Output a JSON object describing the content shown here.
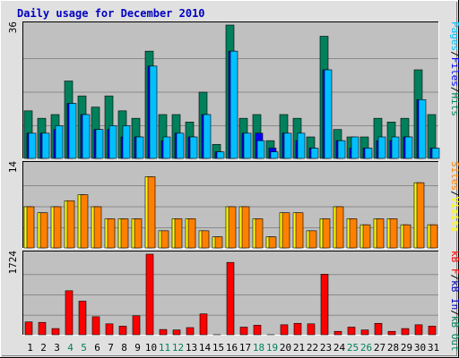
{
  "title": "Daily usage for December 2010",
  "colors": {
    "page_bg": "#E0E0E0",
    "plot_bg": "#C0C0C0",
    "title": "#0000C0",
    "grid": "#8A8A8A",
    "hits": "#00805C",
    "files": "#0000FF",
    "pages": "#00C0FF",
    "visits": "#FFFF00",
    "sites": "#FF8000",
    "kbin": "#0000C0",
    "kbout": "#00805C",
    "kbf": "#FF0000",
    "weekday_label": "#000000",
    "weekend_label": "#00805C"
  },
  "right_labels": {
    "top": [
      {
        "text": "Pages",
        "color": "#00C0FF"
      },
      {
        "text": "/",
        "color": "#000000"
      },
      {
        "text": "Files",
        "color": "#0000FF"
      },
      {
        "text": "/",
        "color": "#000000"
      },
      {
        "text": "Hits",
        "color": "#00805C"
      }
    ],
    "middle": [
      {
        "text": "Sites",
        "color": "#FF8000"
      },
      {
        "text": "/",
        "color": "#000000"
      },
      {
        "text": "Visits",
        "color": "#FFFF00"
      }
    ],
    "bottom": [
      {
        "text": "kB F",
        "color": "#FF0000"
      },
      {
        "text": "/",
        "color": "#000000"
      },
      {
        "text": "kB In",
        "color": "#0000C0"
      },
      {
        "text": "/",
        "color": "#000000"
      },
      {
        "text": "kB Out",
        "color": "#00805C"
      }
    ]
  },
  "chart_data": [
    {
      "type": "bar",
      "panel": "hits-files-pages",
      "ymax_label": "36",
      "ylim": [
        0,
        36
      ],
      "categories": [
        "1",
        "2",
        "3",
        "4",
        "5",
        "6",
        "7",
        "8",
        "9",
        "10",
        "11",
        "12",
        "13",
        "14",
        "15",
        "16",
        "17",
        "18",
        "19",
        "20",
        "21",
        "22",
        "23",
        "24",
        "25",
        "26",
        "27",
        "28",
        "29",
        "30",
        "31"
      ],
      "series": [
        {
          "name": "Hits",
          "color": "#00805C",
          "values": [
            13,
            11,
            12,
            21,
            17,
            14,
            17,
            13,
            11,
            29,
            12,
            12,
            10,
            18,
            4,
            36,
            11,
            12,
            5,
            12,
            11,
            6,
            33,
            8,
            6,
            6,
            11,
            10,
            11,
            24,
            12
          ]
        },
        {
          "name": "Files",
          "color": "#0000FF",
          "values": [
            7,
            7,
            8,
            15,
            12,
            8,
            8,
            6,
            6,
            25,
            5,
            7,
            6,
            12,
            2,
            29,
            7,
            7,
            3,
            7,
            5,
            3,
            24,
            5,
            3,
            3,
            5,
            5,
            6,
            16,
            3
          ]
        },
        {
          "name": "Pages",
          "color": "#00C0FF",
          "values": [
            7,
            7,
            9,
            15,
            12,
            8,
            9,
            9,
            6,
            25,
            6,
            7,
            6,
            12,
            2,
            29,
            7,
            5,
            2,
            7,
            7,
            3,
            24,
            5,
            6,
            3,
            6,
            6,
            6,
            16,
            3
          ]
        }
      ]
    },
    {
      "type": "bar",
      "panel": "visits-sites",
      "ymax_label": "14",
      "ylim": [
        0,
        14
      ],
      "categories": [
        "1",
        "2",
        "3",
        "4",
        "5",
        "6",
        "7",
        "8",
        "9",
        "10",
        "11",
        "12",
        "13",
        "14",
        "15",
        "16",
        "17",
        "18",
        "19",
        "20",
        "21",
        "22",
        "23",
        "24",
        "25",
        "26",
        "27",
        "28",
        "29",
        "30",
        "31"
      ],
      "series": [
        {
          "name": "Visits",
          "color": "#FFFF00",
          "values": [
            7,
            6,
            7,
            8,
            9,
            7,
            5,
            5,
            5,
            12,
            3,
            5,
            5,
            3,
            2,
            7,
            7,
            5,
            2,
            6,
            6,
            3,
            5,
            7,
            5,
            4,
            5,
            5,
            4,
            11,
            4
          ]
        },
        {
          "name": "Sites",
          "color": "#FF8000",
          "values": [
            7,
            6,
            7,
            8,
            9,
            7,
            5,
            5,
            5,
            12,
            3,
            5,
            5,
            3,
            2,
            7,
            7,
            5,
            2,
            6,
            6,
            3,
            5,
            7,
            5,
            4,
            5,
            5,
            4,
            11,
            4
          ]
        }
      ]
    },
    {
      "type": "bar",
      "panel": "kbytes",
      "ymax_label": "1724",
      "ylim": [
        0,
        1724
      ],
      "categories": [
        "1",
        "2",
        "3",
        "4",
        "5",
        "6",
        "7",
        "8",
        "9",
        "10",
        "11",
        "12",
        "13",
        "14",
        "15",
        "16",
        "17",
        "18",
        "19",
        "20",
        "21",
        "22",
        "23",
        "24",
        "25",
        "26",
        "27",
        "28",
        "29",
        "30",
        "31"
      ],
      "series": [
        {
          "name": "kB F",
          "color": "#FF0000",
          "values": [
            290,
            280,
            150,
            950,
            730,
            400,
            250,
            200,
            420,
            1724,
            130,
            120,
            170,
            460,
            20,
            1550,
            180,
            220,
            20,
            230,
            260,
            250,
            1300,
            90,
            180,
            120,
            260,
            90,
            150,
            230,
            200
          ]
        },
        {
          "name": "kB In",
          "color": "#0000C0",
          "values": [
            0,
            0,
            0,
            0,
            0,
            0,
            0,
            0,
            0,
            0,
            0,
            0,
            0,
            0,
            0,
            0,
            0,
            0,
            0,
            0,
            0,
            0,
            0,
            0,
            0,
            0,
            0,
            0,
            0,
            0,
            0
          ]
        },
        {
          "name": "kB Out",
          "color": "#00805C",
          "values": [
            0,
            0,
            0,
            0,
            0,
            0,
            0,
            0,
            0,
            0,
            0,
            0,
            0,
            0,
            0,
            0,
            0,
            0,
            0,
            0,
            0,
            0,
            0,
            0,
            0,
            0,
            0,
            0,
            0,
            0,
            0
          ]
        }
      ]
    }
  ],
  "day_labels": [
    "1",
    "2",
    "3",
    "4",
    "5",
    "6",
    "7",
    "8",
    "9",
    "10",
    "11",
    "12",
    "13",
    "14",
    "15",
    "16",
    "17",
    "18",
    "19",
    "20",
    "21",
    "22",
    "23",
    "24",
    "25",
    "26",
    "27",
    "28",
    "29",
    "30",
    "31"
  ],
  "weekend_days": [
    "4",
    "5",
    "11",
    "12",
    "18",
    "19",
    "25",
    "26"
  ]
}
